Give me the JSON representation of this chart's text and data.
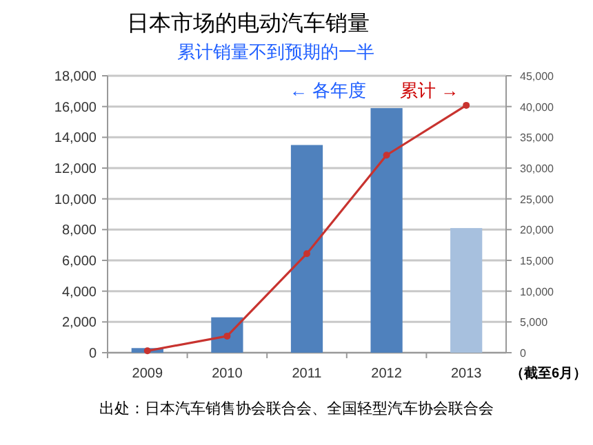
{
  "chart_data": {
    "type": "bar",
    "title": "日本市场的电动汽车销量",
    "subtitle": "累计销量不到预期的一半",
    "categories": [
      "2009",
      "2010",
      "2011",
      "2012",
      "2013"
    ],
    "series": [
      {
        "colors": [
          "#4f81bd",
          "#4f81bd",
          "#4f81bd",
          "#4f81bd",
          "#a7c0de"
        ],
        "values": [
          300,
          2300,
          13500,
          15900,
          8100
        ]
      },
      {
        "type": "line",
        "axis": "y2",
        "color": "#c8332f",
        "marker": "circle",
        "values": [
          300,
          2700,
          16100,
          32100,
          40200
        ]
      }
    ],
    "ylim": [
      0,
      18000
    ],
    "yticks": [
      0,
      {
        "value": 2000,
        "label": "2,000"
      },
      {
        "value": 4000,
        "label": "4,000"
      },
      {
        "value": 6000,
        "label": "6,000"
      },
      {
        "value": 8000,
        "label": "8,000"
      },
      {
        "value": 10000,
        "label": "10,000"
      },
      {
        "value": 12000,
        "label": "12,000"
      },
      {
        "value": 14000,
        "label": "14,000"
      },
      {
        "value": 16000,
        "label": "16,000"
      },
      {
        "value": 18000,
        "label": "18,000"
      }
    ],
    "y2lim": [
      0,
      45000
    ],
    "y2ticks": [
      0,
      {
        "value": 5000,
        "label": "5,000"
      },
      {
        "value": 10000,
        "label": "10,000"
      },
      {
        "value": 15000,
        "label": "15,000"
      },
      {
        "value": 20000,
        "label": "20,000"
      },
      {
        "value": 25000,
        "label": "25,000"
      },
      {
        "value": 30000,
        "label": "30,000"
      },
      {
        "value": 35000,
        "label": "35,000"
      },
      {
        "value": 40000,
        "label": "40,000"
      },
      {
        "value": 45000,
        "label": "45,000"
      }
    ],
    "grid": "y",
    "annotations": [
      "← 各年度",
      "累计 →",
      "（截至6月）",
      "出处：日本汽车销售协会联合会、全国轻型汽车协会联合会"
    ]
  }
}
